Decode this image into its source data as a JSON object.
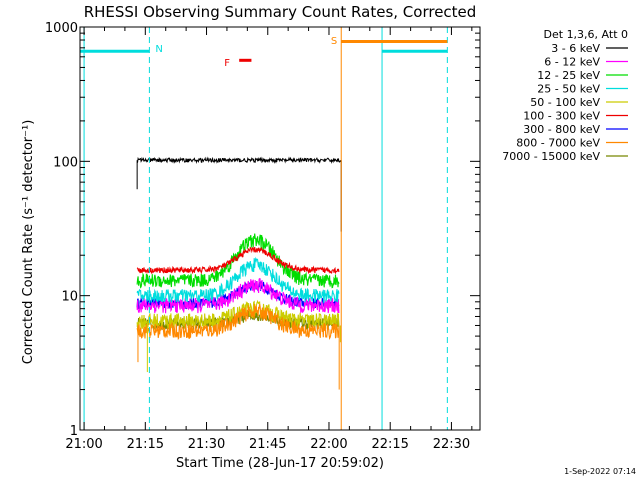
{
  "title": "RHESSI Observing Summary Count Rates, Corrected",
  "footer_date": "1-Sep-2022 07:14",
  "chart_data": {
    "type": "line",
    "title": "RHESSI Observing Summary Count Rates, Corrected",
    "xlabel": "Start Time (28-Jun-17 20:59:02)",
    "ylabel": "Corrected Count Rate (s⁻¹ detector⁻¹)",
    "x_unit": "minutes after 21:00",
    "x_range": [
      -1,
      97
    ],
    "y_range": [
      1,
      1000
    ],
    "y_scale": "log",
    "x_ticks": [
      {
        "value": 0,
        "label": "21:00"
      },
      {
        "value": 15,
        "label": "21:15"
      },
      {
        "value": 30,
        "label": "21:30"
      },
      {
        "value": 45,
        "label": "21:45"
      },
      {
        "value": 60,
        "label": "22:00"
      },
      {
        "value": 75,
        "label": "22:15"
      },
      {
        "value": 90,
        "label": "22:30"
      }
    ],
    "y_ticks": [
      {
        "value": 1,
        "label": "1"
      },
      {
        "value": 10,
        "label": "10"
      },
      {
        "value": 100,
        "label": "100"
      },
      {
        "value": 1000,
        "label": "1000"
      }
    ],
    "legend_header": "Det 1,3,6, Att 0",
    "legend_position": "top-right outside",
    "series": [
      {
        "name": "3 - 6 keV",
        "color": "#000000",
        "base": 102,
        "peak": 0,
        "noise": 0.035,
        "data_start": 13,
        "data_end": 63,
        "drop_start": 63
      },
      {
        "name": "6 - 12 keV",
        "color": "#ff00ff",
        "base": 8.5,
        "peak": 3.5,
        "noise": 0.13
      },
      {
        "name": "12 - 25 keV",
        "color": "#00dd00",
        "base": 13,
        "peak": 13,
        "noise": 0.12
      },
      {
        "name": "25 - 50 keV",
        "color": "#00dddd",
        "base": 10,
        "peak": 7,
        "noise": 0.12
      },
      {
        "name": "50 - 100 keV",
        "color": "#cccc00",
        "base": 6.5,
        "peak": 1.5,
        "noise": 0.14
      },
      {
        "name": "100 - 300 keV",
        "color": "#ee0000",
        "base": 15.5,
        "peak": 6.5,
        "noise": 0.05
      },
      {
        "name": "300 - 800 keV",
        "color": "#0000ff",
        "base": 8.8,
        "peak": 3.2,
        "noise": 0.09
      },
      {
        "name": "800 - 7000 keV",
        "color": "#ff8800",
        "base": 5.5,
        "peak": 2.2,
        "noise": 0.13
      },
      {
        "name": "7000 - 15000 keV",
        "color": "#778800",
        "base": 6.2,
        "peak": 1,
        "noise": 0.1
      }
    ],
    "series_common": {
      "data_start": 13,
      "data_end": 62.5,
      "peak_time": 42
    },
    "annotations": [
      {
        "label": "N",
        "color": "#00dddd",
        "x": 16,
        "y": 700
      },
      {
        "label": "S",
        "color": "#ff8800",
        "x": 63,
        "y": 800
      },
      {
        "label": "F",
        "color": "#ee0000",
        "x": 36,
        "y": 550
      }
    ],
    "night_bars": [
      {
        "label": "N",
        "color": "#00dddd",
        "x_start": -1,
        "x_end": 16,
        "y": 660,
        "solid_x": 0,
        "dashed_x": 16
      },
      {
        "label": "N",
        "color": "#00dddd",
        "x_start": 73,
        "x_end": 89,
        "y": 660,
        "solid_x": 73,
        "dashed_x": 89
      }
    ],
    "saa_bar": {
      "label": "S",
      "color": "#ff8800",
      "x_start": 63,
      "x_end": 89,
      "y": 780,
      "solid_x": 63
    },
    "flare_bar": {
      "label": "F",
      "color": "#ee0000",
      "x_start": 38,
      "x_end": 41,
      "y": 565
    }
  }
}
